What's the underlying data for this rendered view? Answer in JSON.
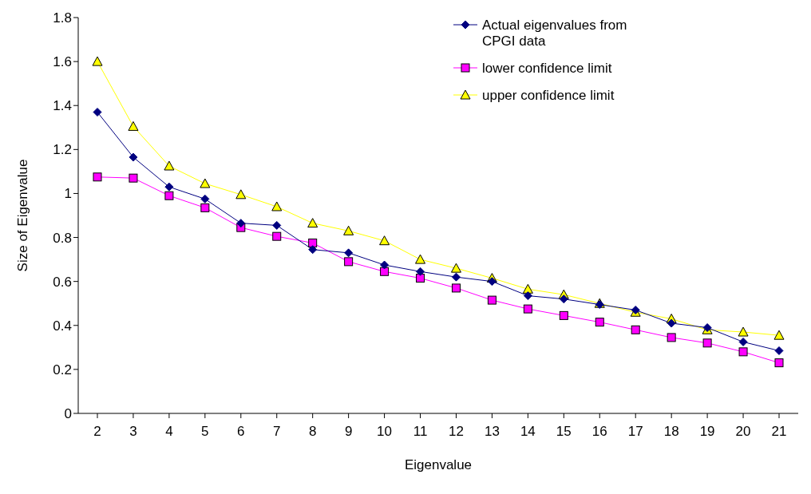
{
  "chart_data": {
    "type": "line",
    "xlabel": "Eigenvalue",
    "ylabel": "Size of Eigenvalue",
    "categories": [
      "2",
      "3",
      "4",
      "5",
      "6",
      "7",
      "8",
      "9",
      "10",
      "11",
      "12",
      "13",
      "14",
      "15",
      "16",
      "17",
      "18",
      "19",
      "20",
      "21"
    ],
    "series": [
      {
        "name": "Actual eigenvalues from CPGI data",
        "color": "#000080",
        "marker": "diamond",
        "values": [
          1.37,
          1.165,
          1.03,
          0.975,
          0.865,
          0.855,
          0.745,
          0.73,
          0.675,
          0.645,
          0.62,
          0.6,
          0.535,
          0.52,
          0.495,
          0.47,
          0.41,
          0.39,
          0.325,
          0.285
        ]
      },
      {
        "name": "lower confidence limit",
        "color": "#ff00ff",
        "marker": "square",
        "values": [
          1.075,
          1.07,
          0.99,
          0.935,
          0.845,
          0.805,
          0.775,
          0.69,
          0.645,
          0.615,
          0.57,
          0.515,
          0.475,
          0.445,
          0.415,
          0.38,
          0.345,
          0.32,
          0.28,
          0.23
        ]
      },
      {
        "name": "upper confidence limit",
        "color": "#ffff00",
        "marker": "triangle",
        "values": [
          1.6,
          1.305,
          1.125,
          1.045,
          0.995,
          0.94,
          0.865,
          0.83,
          0.785,
          0.7,
          0.66,
          0.615,
          0.565,
          0.54,
          0.5,
          0.46,
          0.43,
          0.38,
          0.37,
          0.355
        ]
      }
    ],
    "ylim": [
      0,
      1.8
    ],
    "yticks": [
      0,
      0.2,
      0.4,
      0.6,
      0.8,
      1,
      1.2,
      1.4,
      1.6,
      1.8
    ],
    "grid": false,
    "legend": "top right"
  }
}
